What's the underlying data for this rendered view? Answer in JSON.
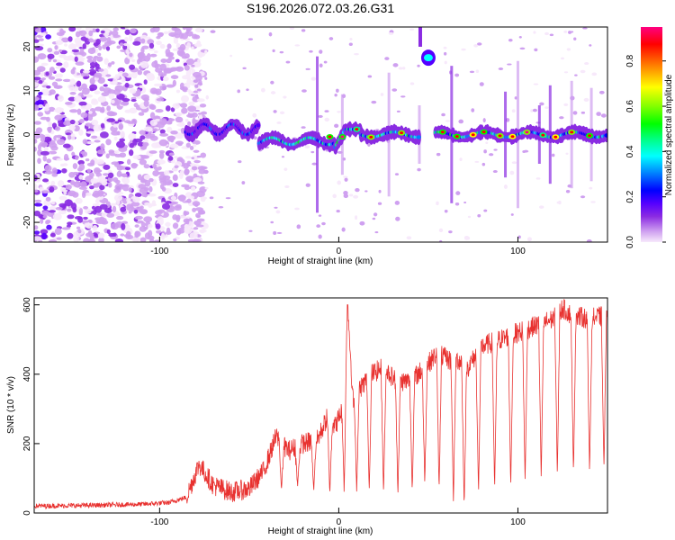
{
  "title": "S196.2026.072.03.26.G31",
  "chart_data": [
    {
      "type": "heatmap",
      "xlabel": "Height of straight line (km)",
      "ylabel": "Frequency (Hz)",
      "xlim": [
        -170,
        150
      ],
      "ylim": [
        -24.5,
        24.5
      ],
      "x_ticks": [
        -100,
        0,
        100
      ],
      "x_tick_labels": [
        "-100",
        "0",
        "100"
      ],
      "y_ticks": [
        -20,
        -10,
        0,
        10,
        20
      ],
      "y_tick_labels": [
        "-20",
        "-10",
        "0",
        "10",
        "20"
      ],
      "colorbar": {
        "label": "Normalized spectral amplitude",
        "range": [
          0,
          0.95
        ],
        "ticks": [
          0,
          0.2,
          0.4,
          0.6,
          0.8
        ],
        "tick_labels": [
          "0.0",
          "0.2",
          "0.4",
          "0.6",
          "0.8"
        ],
        "colors": [
          "#f7e9fb",
          "#cfa0f0",
          "#8a2be2",
          "#5500ff",
          "#0000ff",
          "#0080ff",
          "#00ffff",
          "#00ff80",
          "#00ff00",
          "#80ff00",
          "#ffff00",
          "#ff8000",
          "#ff0000",
          "#ff0080"
        ]
      },
      "features": {
        "ridge_frequency_hz": 0,
        "ridge_start_km": -85,
        "noise_region_km": [
          -170,
          -85
        ],
        "gap_km": [
          45,
          54
        ],
        "bright_blob": {
          "x_km": 50,
          "y_hz": 17.5
        }
      }
    },
    {
      "type": "line",
      "xlabel": "Height of straight line (km)",
      "ylabel": "SNR (10 * v/v)",
      "xlim": [
        -170,
        150
      ],
      "ylim": [
        0,
        620
      ],
      "x_ticks": [
        -100,
        0,
        100
      ],
      "x_tick_labels": [
        "-100",
        "0",
        "100"
      ],
      "y_ticks": [
        0,
        200,
        400,
        600
      ],
      "y_tick_labels": [
        "0",
        "200",
        "400",
        "600"
      ],
      "series": [
        {
          "name": "SNR",
          "color": "#e8312f",
          "x": [
            -170,
            -140,
            -110,
            -95,
            -85,
            -78,
            -70,
            -60,
            -50,
            -42,
            -35,
            -28,
            -20,
            -12,
            -6,
            -2,
            2,
            5,
            8,
            12,
            18,
            25,
            32,
            40,
            48,
            55,
            62,
            68,
            72,
            80,
            90,
            100,
            110,
            120,
            125,
            130,
            140,
            150
          ],
          "values": [
            20,
            22,
            25,
            30,
            45,
            140,
            80,
            60,
            70,
            120,
            220,
            180,
            200,
            210,
            280,
            250,
            300,
            600,
            320,
            360,
            400,
            420,
            380,
            380,
            420,
            460,
            440,
            440,
            420,
            480,
            500,
            520,
            540,
            560,
            590,
            570,
            560,
            570
          ]
        }
      ],
      "dips": {
        "x": [
          -32,
          -23,
          -14,
          -5,
          3,
          10,
          17,
          25,
          33,
          41,
          48,
          56,
          64,
          70,
          78,
          87,
          96,
          104,
          113,
          122,
          131,
          140,
          148
        ],
        "floor": [
          60,
          70,
          60,
          50,
          55,
          60,
          60,
          50,
          50,
          60,
          80,
          60,
          30,
          10,
          50,
          60,
          70,
          80,
          90,
          100,
          110,
          110,
          120
        ]
      }
    }
  ]
}
